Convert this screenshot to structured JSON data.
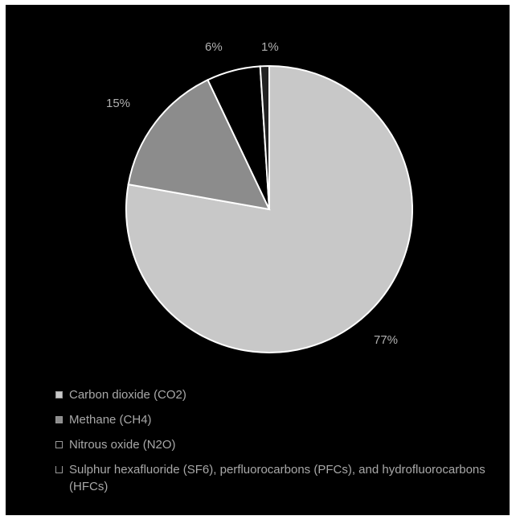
{
  "chart_data": {
    "type": "pie",
    "categories": [
      "Carbon dioxide (CO2)",
      "Methane (CH4)",
      "Nitrous oxide (N2O)",
      "Sulphur hexafluoride (SF6), perfluorocarbons (PFCs), and hydrofluorocarbons (HFCs)"
    ],
    "values": [
      77,
      15,
      6,
      1
    ],
    "labels": [
      "77%",
      "15%",
      "6%",
      "1%"
    ],
    "colors": [
      "#c8c8c8",
      "#8c8c8c",
      "#000000",
      "#222222"
    ],
    "edge_color": "#ffffff",
    "legend_placement": "bottom"
  },
  "legend": {
    "items": [
      {
        "label": "Carbon dioxide (CO2)"
      },
      {
        "label": "Methane (CH4)"
      },
      {
        "label": "Nitrous oxide (N2O)"
      },
      {
        "label": "Sulphur hexafluoride (SF6), perfluorocarbons (PFCs), and hydrofluorocarbons (HFCs)"
      }
    ]
  },
  "theme": {
    "background": "#000000",
    "text": "#a8a8a8"
  }
}
